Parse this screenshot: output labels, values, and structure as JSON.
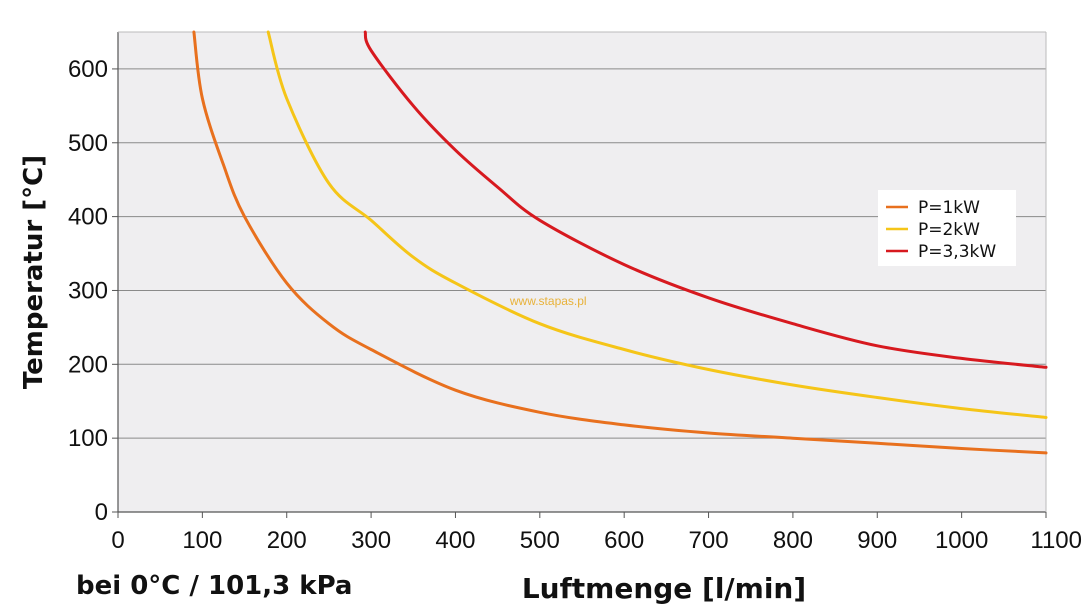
{
  "chart_data": {
    "type": "line",
    "xlabel": "Luftmenge [l/min]",
    "ylabel": "Temperatur [°C]",
    "note": "bei 0°C / 101,3 kPa",
    "watermark": "www.stapas.pl",
    "xlim": [
      0,
      1100
    ],
    "ylim": [
      0,
      650
    ],
    "xticks": [
      0,
      100,
      200,
      300,
      400,
      500,
      600,
      700,
      800,
      900,
      1000,
      1100
    ],
    "yticks": [
      0,
      100,
      200,
      300,
      400,
      500,
      600
    ],
    "grid": "horizontal",
    "legend": "right",
    "series": [
      {
        "name": "P=1kW",
        "color": "#e8701e",
        "x": [
          90,
          100,
          125,
          150,
          200,
          250,
          300,
          400,
          500,
          600,
          700,
          800,
          900,
          1000,
          1100
        ],
        "y": [
          650,
          560,
          470,
          400,
          310,
          255,
          220,
          165,
          135,
          118,
          107,
          100,
          93,
          86,
          80
        ]
      },
      {
        "name": "P=2kW",
        "color": "#f5c518",
        "x": [
          178,
          200,
          250,
          300,
          350,
          400,
          500,
          600,
          700,
          800,
          900,
          1000,
          1100
        ],
        "y": [
          650,
          560,
          445,
          395,
          345,
          310,
          255,
          220,
          193,
          172,
          155,
          140,
          128
        ]
      },
      {
        "name": "P=3,3kW",
        "color": "#d7191f",
        "x": [
          293,
          300,
          350,
          400,
          450,
          500,
          600,
          700,
          800,
          900,
          1000,
          1100
        ],
        "y": [
          650,
          625,
          550,
          490,
          440,
          395,
          335,
          290,
          255,
          225,
          208,
          196
        ]
      }
    ]
  }
}
